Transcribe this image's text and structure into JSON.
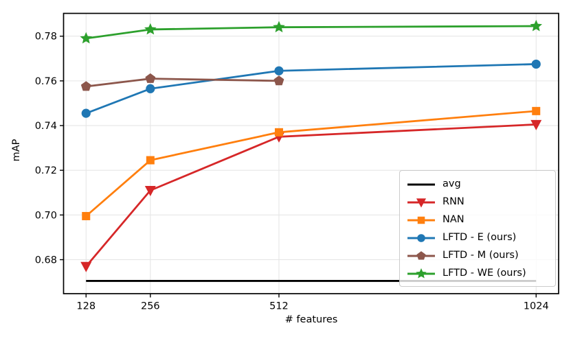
{
  "chart_data": {
    "type": "line",
    "title": "",
    "xlabel": "# features",
    "ylabel": "mAP",
    "xscale": "linear",
    "grid": true,
    "legend_position": "lower right",
    "xlim": [
      83.2,
      1068.8
    ],
    "ylim": [
      0.6648,
      0.7902
    ],
    "xticks": [
      128,
      256,
      512,
      1024
    ],
    "xtick_labels": [
      "128",
      "256",
      "512",
      "1024"
    ],
    "yticks": [
      0.68,
      0.7,
      0.72,
      0.74,
      0.76,
      0.78
    ],
    "ytick_labels": [
      "0.68",
      "0.70",
      "0.72",
      "0.74",
      "0.76",
      "0.78"
    ],
    "series": [
      {
        "name": "avg",
        "color": "#000000",
        "marker": "none",
        "x": [
          128,
          1024
        ],
        "values": [
          0.6705,
          0.6705
        ]
      },
      {
        "name": "RNN",
        "color": "#d62728",
        "marker": "triangle-down",
        "x": [
          128,
          256,
          512,
          1024
        ],
        "values": [
          0.677,
          0.711,
          0.735,
          0.7405
        ]
      },
      {
        "name": "NAN",
        "color": "#ff7f0e",
        "marker": "square",
        "x": [
          128,
          256,
          512,
          1024
        ],
        "values": [
          0.6995,
          0.7245,
          0.737,
          0.7465
        ]
      },
      {
        "name": "LFTD - E (ours)",
        "color": "#1f77b4",
        "marker": "circle",
        "x": [
          128,
          256,
          512,
          1024
        ],
        "values": [
          0.7455,
          0.7565,
          0.7645,
          0.7675
        ]
      },
      {
        "name": "LFTD - M (ours)",
        "color": "#8c564b",
        "marker": "pentagon",
        "x": [
          128,
          256,
          512
        ],
        "values": [
          0.7575,
          0.761,
          0.76
        ]
      },
      {
        "name": "LFTD - WE (ours)",
        "color": "#2ca02c",
        "marker": "star",
        "x": [
          128,
          256,
          512,
          1024
        ],
        "values": [
          0.779,
          0.783,
          0.784,
          0.7845
        ]
      }
    ],
    "style": {
      "grid_color": "#e6e6e6",
      "spine_color": "#000000",
      "legend_border_color": "#cbcbcb"
    }
  }
}
